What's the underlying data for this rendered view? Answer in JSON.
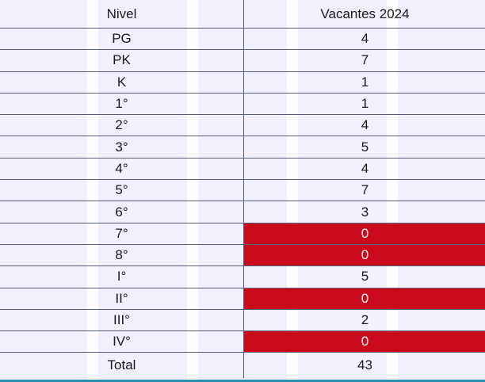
{
  "table": {
    "headers": [
      "Nivel",
      "Vacantes 2024"
    ],
    "rows": [
      {
        "nivel": "PG",
        "vacantes": "4"
      },
      {
        "nivel": "PK",
        "vacantes": "7"
      },
      {
        "nivel": "K",
        "vacantes": "1"
      },
      {
        "nivel": "1°",
        "vacantes": "1"
      },
      {
        "nivel": "2°",
        "vacantes": "4"
      },
      {
        "nivel": "3°",
        "vacantes": "5"
      },
      {
        "nivel": "4°",
        "vacantes": "4"
      },
      {
        "nivel": "5°",
        "vacantes": "7"
      },
      {
        "nivel": "6°",
        "vacantes": "3"
      },
      {
        "nivel": "7°",
        "vacantes": "0"
      },
      {
        "nivel": "8°",
        "vacantes": "0"
      },
      {
        "nivel": "I°",
        "vacantes": "5"
      },
      {
        "nivel": "II°",
        "vacantes": "0"
      },
      {
        "nivel": "III°",
        "vacantes": "2"
      },
      {
        "nivel": "IV°",
        "vacantes": "0"
      }
    ],
    "total": {
      "label": "Total",
      "value": "43"
    }
  },
  "colors": {
    "background": "#f2f0fc",
    "zero_highlight": "#cc0a1e",
    "grid": "#55607a",
    "bottom_bar": "#2a8fb0"
  }
}
